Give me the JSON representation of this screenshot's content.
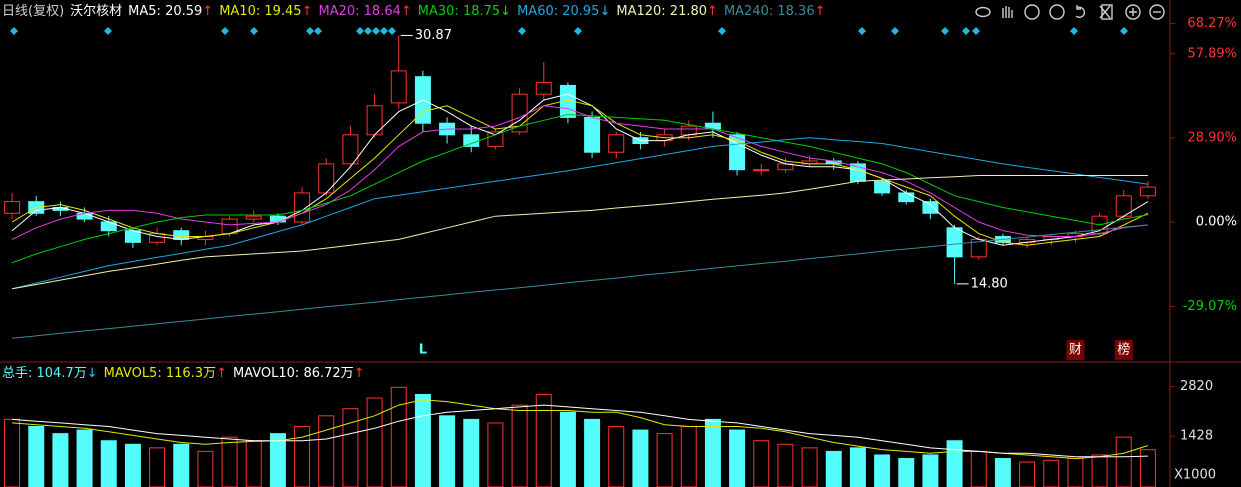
{
  "chart_data": [
    {
      "type": "candlestick",
      "subtitle": "日线(复权)",
      "title": "沃尔核材",
      "up_color": "#ff3232",
      "down_color": "#54fcfc",
      "open": [
        3,
        7,
        5,
        3,
        0,
        -3,
        -7,
        -3,
        -6,
        -4,
        1,
        2,
        0,
        10,
        20,
        30,
        41,
        50,
        34,
        30,
        26,
        31,
        44,
        47,
        36,
        24,
        29,
        28,
        30,
        34,
        30,
        18,
        18,
        20,
        21,
        20,
        14,
        10,
        7,
        -2,
        -12,
        -5,
        -7,
        -6,
        -5,
        -4,
        2,
        9
      ],
      "high": [
        10,
        9,
        7,
        5,
        2,
        -2,
        -2,
        -2,
        -3,
        2,
        4,
        3,
        12,
        22,
        33,
        44,
        64.2,
        52,
        36,
        33,
        32,
        46,
        55,
        48,
        38,
        31,
        31,
        32,
        35,
        38,
        31,
        20,
        22,
        23,
        22,
        21,
        15,
        11,
        8,
        -1,
        -5,
        -4,
        -5,
        -4,
        -3,
        3,
        11,
        14
      ],
      "low": [
        1,
        2,
        2,
        0,
        -5,
        -9,
        -8,
        -8,
        -8,
        -5,
        0,
        -1,
        -1,
        9,
        19,
        29,
        39,
        31,
        27,
        24,
        25,
        30,
        42,
        34,
        22,
        22,
        25,
        26,
        28,
        29,
        16,
        16,
        17,
        19,
        18,
        13,
        9,
        6,
        1,
        -21.3,
        -13,
        -8,
        -9,
        -8,
        -7,
        -5,
        1,
        8
      ],
      "close": [
        7,
        3,
        4,
        1,
        -3,
        -7,
        -4,
        -6,
        -5,
        1,
        2,
        0,
        10,
        20,
        30,
        40,
        52,
        34,
        30,
        26,
        31,
        44,
        48,
        36,
        24,
        30,
        27,
        30,
        33,
        32,
        18,
        18,
        20,
        21,
        20,
        14,
        10,
        7,
        3,
        -12,
        -6,
        -7,
        -6,
        -5,
        -4,
        2,
        9,
        12
      ],
      "high_label": "30.87",
      "low_label": "14.80",
      "series": [
        {
          "name": "MA5: 20.59",
          "arrow": "↑",
          "arrow_color": "#ff3232",
          "color": "#ffffff",
          "values": [
            -3,
            4,
            5,
            3,
            0,
            -3,
            -5,
            -6,
            -5,
            -4,
            -1,
            0,
            4,
            10,
            19,
            30,
            38,
            42,
            38,
            33,
            30,
            35,
            42,
            44,
            40,
            32,
            28,
            28,
            30,
            31,
            27,
            23,
            20,
            19,
            19,
            18,
            15,
            10,
            6,
            -2,
            -6,
            -8,
            -7,
            -6,
            -5,
            -3,
            2,
            7
          ]
        },
        {
          "name": "MA10: 19.45",
          "arrow": "↑",
          "arrow_color": "#ff3232",
          "color": "#e8e800",
          "values": [
            0,
            5,
            6,
            4,
            1,
            -2,
            -4,
            -5,
            -5,
            -4,
            -2,
            0,
            3,
            8,
            15,
            22,
            30,
            38,
            40,
            36,
            32,
            33,
            40,
            42,
            40,
            34,
            30,
            29,
            29,
            30,
            28,
            24,
            21,
            20,
            20,
            18,
            15,
            12,
            9,
            2,
            -4,
            -7,
            -8,
            -7,
            -6,
            -5,
            -1,
            3
          ]
        },
        {
          "name": "MA20: 18.64",
          "arrow": "↑",
          "arrow_color": "#ff3232",
          "color": "#e040e0",
          "values": [
            -6,
            -2,
            1,
            3,
            4,
            4,
            3,
            1,
            0,
            -1,
            -0.5,
            0,
            3,
            6,
            11,
            18,
            26,
            31,
            32,
            32,
            33,
            36,
            40,
            39,
            36,
            34,
            33,
            32,
            32,
            32,
            29,
            26,
            24,
            22,
            21,
            19,
            17,
            14,
            10,
            5,
            0,
            -3,
            -4.5,
            -5,
            -5,
            -4,
            -2,
            -1
          ]
        },
        {
          "name": "MA30: 18.75",
          "arrow": "↓",
          "arrow_color": "#00e000",
          "color": "#00d000",
          "values": [
            -14,
            -11,
            -8.5,
            -6,
            -4,
            -2,
            0,
            1.5,
            2.4,
            2.4,
            2.4,
            2.4,
            4,
            6.5,
            9,
            13,
            17,
            21,
            24,
            27,
            30,
            33,
            35,
            37,
            36.5,
            36,
            35.5,
            35,
            33.5,
            32,
            30.5,
            29,
            27.5,
            26,
            24,
            22,
            20,
            17,
            13,
            9,
            7,
            5,
            3.5,
            2,
            0.5,
            -1,
            1,
            2.5
          ]
        },
        {
          "name": "MA60: 20.95",
          "arrow": "↓",
          "arrow_color": "#20c8e8",
          "color": "#20a8e0",
          "values": [
            -23,
            -21,
            -19,
            -17,
            -15,
            -13.6,
            -12.2,
            -10.8,
            -9.4,
            -8,
            -5.7,
            -3.3,
            -1,
            2,
            5,
            8,
            9.2,
            10.4,
            11.6,
            12.8,
            14,
            15.2,
            16.4,
            17.6,
            19,
            20.4,
            21.8,
            23.2,
            24.6,
            26,
            26.8,
            27.5,
            28.3,
            29,
            28.3,
            27.7,
            27,
            25.6,
            24.2,
            22.8,
            21.4,
            20,
            18.8,
            17.7,
            16.5,
            15.3,
            14.2,
            13
          ]
        },
        {
          "name": "MA120: 21.80",
          "arrow": "↑",
          "arrow_color": "#ff3232",
          "color": "#f0f0b0",
          "values": [
            -23,
            -21.5,
            -20,
            -18.5,
            -17,
            -15.8,
            -14.5,
            -13.2,
            -12,
            -11.5,
            -11,
            -10.5,
            -10,
            -9,
            -8,
            -7,
            -6,
            -4,
            -2,
            0,
            2,
            2.5,
            3,
            3.5,
            4,
            4.8,
            5.5,
            6.2,
            7,
            7.8,
            8.5,
            9.2,
            10,
            11.3,
            12.6,
            14,
            14.4,
            14.8,
            15.2,
            15.6,
            16,
            16,
            16,
            16,
            16,
            16,
            16,
            16
          ]
        },
        {
          "name": "MA240: 18.36",
          "arrow": "↑",
          "arrow_color": "#ff3232",
          "color": "#3a8a9a",
          "values": [
            -40,
            -39.2,
            -38.3,
            -37.5,
            -36.7,
            -35.9,
            -35,
            -34.2,
            -33.4,
            -32.5,
            -31.7,
            -30.9,
            -30,
            -29.2,
            -28.4,
            -27.6,
            -26.7,
            -25.9,
            -25.1,
            -24.2,
            -23.4,
            -22.6,
            -21.8,
            -20.9,
            -20.1,
            -19.3,
            -18.4,
            -17.6,
            -16.8,
            -15.9,
            -15.1,
            -14.3,
            -13.5,
            -12.6,
            -11.8,
            -11,
            -10.1,
            -9.3,
            -8.5,
            -7.6,
            -6.8,
            -6,
            -5.2,
            -4.3,
            -3.5,
            -2.7,
            -1.8,
            -1
          ]
        }
      ],
      "events": [
        null,
        null,
        null,
        null,
        null,
        null,
        null,
        null,
        null,
        null,
        null,
        null,
        null,
        null,
        null,
        null,
        null,
        {
          "label": "L",
          "color": "#54fcfc"
        },
        null,
        null,
        null,
        null,
        null,
        null,
        null,
        null,
        null,
        null,
        null,
        null,
        null,
        null,
        null,
        null,
        null,
        null,
        null,
        null,
        null,
        null,
        null,
        null,
        null,
        null,
        {
          "label": "财",
          "color": "#ff3232"
        },
        null,
        {
          "label": "榜",
          "color": "#ff3232"
        },
        null
      ],
      "ylim": [
        -47.5,
        76.4
      ],
      "yticks": [
        {
          "value": 68.27,
          "label": "68.27%"
        },
        {
          "value": 57.89,
          "label": "57.89%"
        },
        {
          "value": 28.9,
          "label": "28.90%"
        },
        {
          "value": 0,
          "label": "0.00%"
        },
        {
          "value": -29.07,
          "label": "-29.07%"
        }
      ],
      "grid": false
    },
    {
      "type": "volume",
      "title": "总手: 104.7万",
      "title_arrow": "↓",
      "title_arrow_color": "#20c8e8",
      "title_color": "#54fcfc",
      "values": [
        1900,
        1700,
        1500,
        1600,
        1300,
        1200,
        1100,
        1200,
        1000,
        1400,
        1300,
        1500,
        1700,
        2000,
        2200,
        2500,
        2800,
        2600,
        2000,
        1900,
        1800,
        2300,
        2600,
        2100,
        1900,
        1700,
        1600,
        1500,
        1700,
        1900,
        1600,
        1300,
        1200,
        1100,
        1000,
        1100,
        900,
        800,
        900,
        1300,
        1000,
        800,
        700,
        750,
        800,
        900,
        1400,
        1047
      ],
      "series": [
        {
          "name": "MAVOL5: 116.3万",
          "arrow": "↑",
          "arrow_color": "#ff3232",
          "color": "#e8e800",
          "values": [
            1800,
            1750,
            1700,
            1650,
            1550,
            1450,
            1350,
            1250,
            1200,
            1250,
            1280,
            1300,
            1400,
            1600,
            1800,
            2000,
            2300,
            2450,
            2400,
            2300,
            2200,
            2150,
            2150,
            2150,
            2100,
            2100,
            1950,
            1750,
            1700,
            1700,
            1700,
            1650,
            1550,
            1400,
            1250,
            1150,
            1050,
            1000,
            950,
            1000,
            1000,
            950,
            900,
            850,
            800,
            850,
            950,
            1163
          ]
        },
        {
          "name": "MAVOL10: 86.72万",
          "arrow": "↑",
          "arrow_color": "#ff3232",
          "color": "#ffffff",
          "values": [
            1900,
            1850,
            1800,
            1750,
            1700,
            1600,
            1500,
            1450,
            1400,
            1350,
            1300,
            1300,
            1300,
            1350,
            1500,
            1650,
            1850,
            2000,
            2100,
            2150,
            2200,
            2250,
            2300,
            2250,
            2200,
            2150,
            2100,
            2000,
            1900,
            1850,
            1800,
            1700,
            1600,
            1500,
            1450,
            1400,
            1300,
            1200,
            1100,
            1050,
            1000,
            950,
            950,
            900,
            850,
            850,
            850,
            867
          ]
        }
      ],
      "ylim": [
        0,
        3400
      ],
      "yticks": [
        2820,
        1428
      ],
      "unit_label": "X1000",
      "grid": false
    }
  ]
}
